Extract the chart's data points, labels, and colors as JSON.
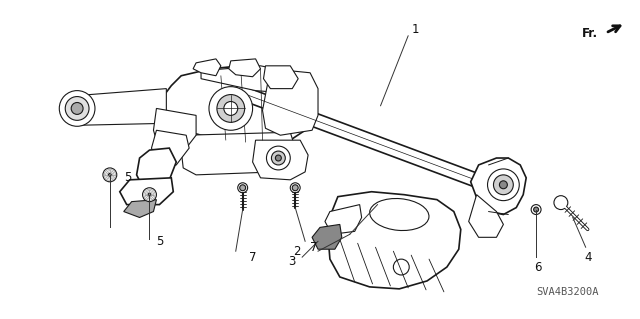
{
  "background_color": "#ffffff",
  "line_color": "#1a1a1a",
  "watermark": "SVA4B3200A",
  "figsize": [
    6.4,
    3.19
  ],
  "dpi": 100,
  "label_fontsize": 8.5,
  "watermark_fontsize": 7.5,
  "gray": "#888888",
  "lightgray": "#cccccc",
  "darkgray": "#555555"
}
